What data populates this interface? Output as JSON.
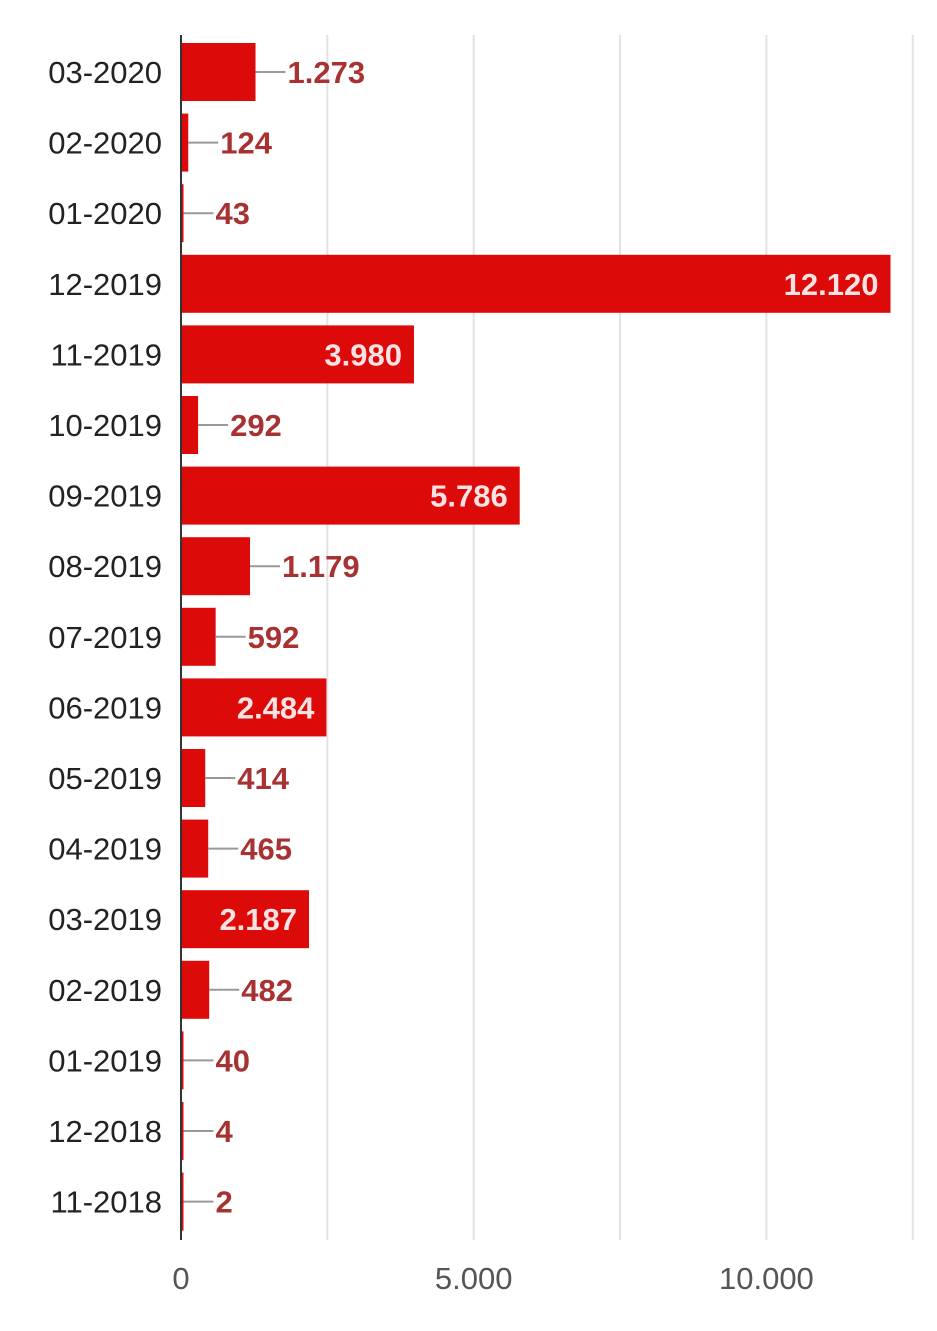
{
  "chart_data": {
    "type": "bar",
    "orientation": "horizontal",
    "categories": [
      "03-2020",
      "02-2020",
      "01-2020",
      "12-2019",
      "11-2019",
      "10-2019",
      "09-2019",
      "08-2019",
      "07-2019",
      "06-2019",
      "05-2019",
      "04-2019",
      "03-2019",
      "02-2019",
      "01-2019",
      "12-2018",
      "11-2018"
    ],
    "values": [
      1273,
      124,
      43,
      12120,
      3980,
      292,
      5786,
      1179,
      592,
      2484,
      414,
      465,
      2187,
      482,
      40,
      4,
      2
    ],
    "value_labels": [
      "1.273",
      "124",
      "43",
      "12.120",
      "3.980",
      "292",
      "5.786",
      "1.179",
      "592",
      "2.484",
      "414",
      "465",
      "2.187",
      "482",
      "40",
      "4",
      "2"
    ],
    "x_ticks": [
      0,
      2500,
      5000,
      7500,
      10000,
      12500
    ],
    "x_tick_labels": [
      "0",
      "",
      "5.000",
      "",
      "10.000",
      ""
    ],
    "xlim": [
      0,
      12500
    ],
    "grid": true,
    "colors": {
      "bar": "#dd0a0a",
      "label_outside": "#a83232",
      "label_inside": "#fbe3e3",
      "leader_line": "#999999",
      "grid": "#e2e2e2",
      "axis": "#333333"
    }
  }
}
